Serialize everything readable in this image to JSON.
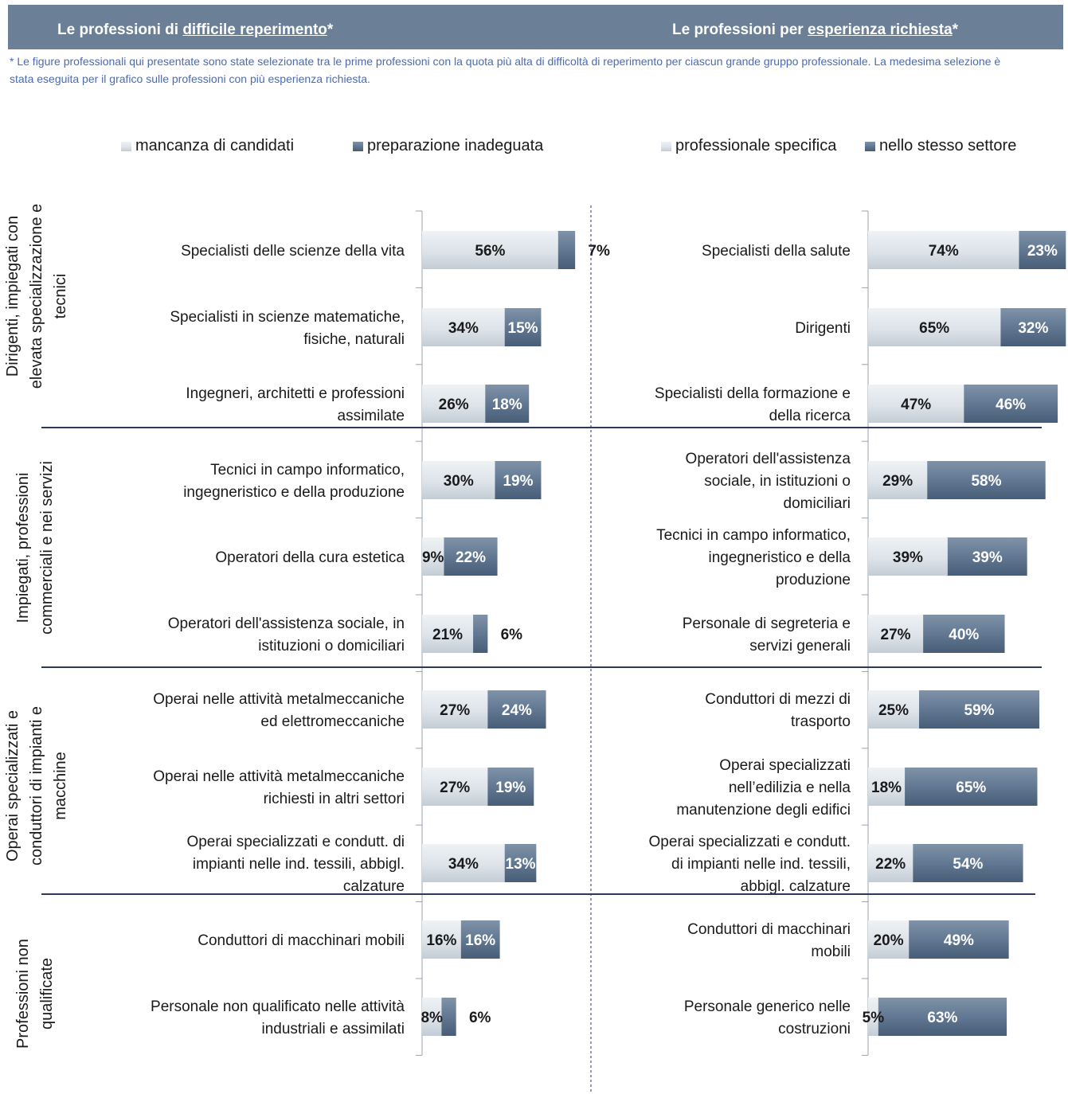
{
  "header": {
    "left_title_prefix": "Le professioni di ",
    "left_title_link": "difficile reperimento",
    "left_title_suffix": "*",
    "right_title_prefix": "Le professioni per ",
    "right_title_link": "esperienza richiesta",
    "right_title_suffix": "*"
  },
  "footnote": "* Le figure professionali qui presentate sono state selezionate tra le prime professioni con la quota più alta di difficoltà di reperimento per ciascun grande gruppo professionale. La medesima selezione è stata eseguita per il grafico sulle professioni con più esperienza richiesta.",
  "colors": {
    "light_series": "#d5dde5",
    "dark_series": "#5f7590",
    "header_bg": "#6b8096",
    "footnote": "#4a6bb3",
    "separator": "#2c3a58"
  },
  "groups": [
    {
      "label": [
        "Dirigenti, impiegati con",
        "elevata specializzazione e",
        "tecnici"
      ]
    },
    {
      "label": [
        "Impiegati, professioni",
        "commerciali e nei servizi"
      ]
    },
    {
      "label": [
        "Operai specializzati e",
        "conduttori di impianti e",
        "macchine"
      ]
    },
    {
      "label": [
        "Professioni non",
        "qualificate"
      ]
    }
  ],
  "chart_data": [
    {
      "type": "bar",
      "orientation": "horizontal",
      "stacked": true,
      "title": "Le professioni di difficile reperimento*",
      "series": [
        {
          "name": "mancanza di candidati",
          "color": "#d5dde5",
          "values": [
            56,
            34,
            26,
            30,
            9,
            21,
            27,
            27,
            34,
            16,
            8
          ]
        },
        {
          "name": "preparazione inadeguata",
          "color": "#5f7590",
          "values": [
            7,
            15,
            18,
            19,
            22,
            6,
            24,
            19,
            13,
            16,
            6
          ]
        }
      ],
      "categories": [
        [
          "Specialisti delle scienze della vita"
        ],
        [
          "Specialisti in scienze matematiche,",
          "fisiche, naturali"
        ],
        [
          "Ingegneri, architetti e professioni",
          "assimilate"
        ],
        [
          "Tecnici in campo informatico,",
          "ingegneristico e della produzione"
        ],
        [
          "Operatori della cura estetica"
        ],
        [
          "Operatori dell'assistenza sociale, in",
          "istituzioni o domiciliari"
        ],
        [
          "Operai nelle attività metalmeccaniche",
          "ed elettromeccaniche"
        ],
        [
          "Operai nelle attività metalmeccaniche",
          "richiesti in altri settori"
        ],
        [
          "Operai specializzati e condutt. di",
          "impianti nelle ind. tessili, abbigl.",
          "calzature"
        ],
        [
          "Conduttori di macchinari mobili"
        ],
        [
          "Personale non qualificato nelle attività",
          "industriali e assimilati"
        ]
      ],
      "value_labels": [
        [
          "56%",
          "7%"
        ],
        [
          "34%",
          "15%"
        ],
        [
          "26%",
          "18%"
        ],
        [
          "30%",
          "19%"
        ],
        [
          "9%",
          "22%"
        ],
        [
          "21%",
          "6%"
        ],
        [
          "27%",
          "24%"
        ],
        [
          "27%",
          "19%"
        ],
        [
          "34%",
          "13%"
        ],
        [
          "16%",
          "16%"
        ],
        [
          "8%",
          "6%"
        ]
      ],
      "xlim": [
        0,
        100
      ],
      "grid": false,
      "legend_position": "top"
    },
    {
      "type": "bar",
      "orientation": "horizontal",
      "stacked": true,
      "title": "Le professioni per esperienza richiesta*",
      "series": [
        {
          "name": "professionale specifica",
          "color": "#d5dde5",
          "values": [
            74,
            65,
            47,
            29,
            39,
            27,
            25,
            18,
            22,
            20,
            5
          ]
        },
        {
          "name": "nello stesso settore",
          "color": "#5f7590",
          "values": [
            23,
            32,
            46,
            58,
            39,
            40,
            59,
            65,
            54,
            49,
            63
          ]
        }
      ],
      "categories": [
        [
          "Specialisti della salute"
        ],
        [
          "Dirigenti"
        ],
        [
          "Specialisti della formazione e",
          "della ricerca"
        ],
        [
          "Operatori dell'assistenza",
          "sociale, in istituzioni o",
          "domiciliari"
        ],
        [
          "Tecnici in campo informatico,",
          "ingegneristico e della",
          "produzione"
        ],
        [
          "Personale di segreteria e",
          "servizi generali"
        ],
        [
          "Conduttori di mezzi di",
          "trasporto"
        ],
        [
          "Operai specializzati",
          "nell’edilizia e nella",
          "manutenzione degli edifici"
        ],
        [
          "Operai specializzati e condutt.",
          "di impianti nelle ind. tessili,",
          "abbigl. calzature"
        ],
        [
          "Conduttori di macchinari",
          "mobili"
        ],
        [
          "Personale generico nelle",
          "costruzioni"
        ]
      ],
      "value_labels": [
        [
          "74%",
          "23%"
        ],
        [
          "65%",
          "32%"
        ],
        [
          "47%",
          "46%"
        ],
        [
          "29%",
          "58%"
        ],
        [
          "39%",
          "39%"
        ],
        [
          "27%",
          "40%"
        ],
        [
          "25%",
          "59%"
        ],
        [
          "18%",
          "65%"
        ],
        [
          "22%",
          "54%"
        ],
        [
          "20%",
          "49%"
        ],
        [
          "5%",
          "63%"
        ]
      ],
      "xlim": [
        0,
        100
      ],
      "grid": false,
      "legend_position": "top"
    }
  ]
}
